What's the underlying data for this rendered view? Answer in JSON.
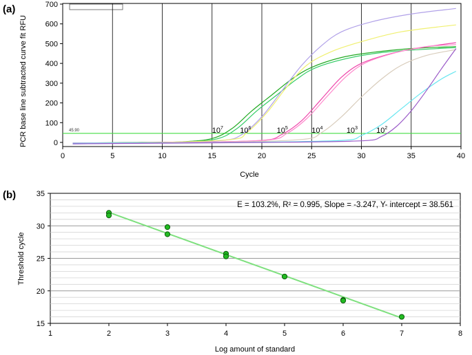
{
  "figure": {
    "panel_a_label": "(a)",
    "panel_b_label": "(b)"
  },
  "chart_data": [
    {
      "type": "line",
      "xlabel": "Cycle",
      "ylabel": "PCR base line subtracted curve fit RFU",
      "xlim": [
        0,
        40
      ],
      "ylim": [
        -10,
        700
      ],
      "xticks": [
        0,
        5,
        10,
        15,
        20,
        25,
        30,
        35,
        40
      ],
      "yticks": [
        0,
        100,
        200,
        300,
        400,
        500,
        600,
        700
      ],
      "grid": "vertical",
      "threshold": {
        "value": 45.9,
        "label": "45.90",
        "color": "#44dd44"
      },
      "dilution_labels": [
        {
          "base": "10",
          "exp": "7",
          "x": 15.0
        },
        {
          "base": "10",
          "exp": "6",
          "x": 17.8
        },
        {
          "base": "10",
          "exp": "5",
          "x": 21.5
        },
        {
          "base": "10",
          "exp": "4",
          "x": 25.0
        },
        {
          "base": "10",
          "exp": "3",
          "x": 28.5
        },
        {
          "base": "10",
          "exp": "2",
          "x": 31.5
        }
      ],
      "series": [
        {
          "color": "#22aa22",
          "points": [
            [
              1,
              -5
            ],
            [
              8,
              0
            ],
            [
              12,
              3
            ],
            [
              15,
              20
            ],
            [
              17,
              70
            ],
            [
              19,
              160
            ],
            [
              21,
              240
            ],
            [
              23,
              320
            ],
            [
              25,
              380
            ],
            [
              28,
              430
            ],
            [
              31,
              455
            ],
            [
              35,
              475
            ],
            [
              39.5,
              485
            ]
          ]
        },
        {
          "color": "#33cc66",
          "points": [
            [
              1,
              -3
            ],
            [
              8,
              0
            ],
            [
              12,
              2
            ],
            [
              15.5,
              18
            ],
            [
              17.5,
              70
            ],
            [
              19.5,
              160
            ],
            [
              21.5,
              240
            ],
            [
              23.5,
              320
            ],
            [
              25.5,
              380
            ],
            [
              29,
              430
            ],
            [
              33,
              460
            ],
            [
              39.5,
              480
            ]
          ]
        },
        {
          "color": "#b0a0e8",
          "points": [
            [
              1,
              -8
            ],
            [
              10,
              0
            ],
            [
              16,
              10
            ],
            [
              18,
              40
            ],
            [
              20,
              130
            ],
            [
              22,
              260
            ],
            [
              24,
              390
            ],
            [
              26,
              490
            ],
            [
              28,
              560
            ],
            [
              31,
              610
            ],
            [
              35,
              650
            ],
            [
              39.5,
              678
            ]
          ]
        },
        {
          "color": "#f0f070",
          "points": [
            [
              1,
              -4
            ],
            [
              10,
              0
            ],
            [
              17,
              15
            ],
            [
              18.5,
              50
            ],
            [
              20.5,
              150
            ],
            [
              22.5,
              280
            ],
            [
              24.5,
              390
            ],
            [
              27,
              460
            ],
            [
              30,
              510
            ],
            [
              34,
              560
            ],
            [
              39.5,
              595
            ]
          ]
        },
        {
          "color": "#ee44aa",
          "points": [
            [
              1,
              -6
            ],
            [
              12,
              0
            ],
            [
              20,
              10
            ],
            [
              22,
              40
            ],
            [
              24,
              110
            ],
            [
              26,
              220
            ],
            [
              28,
              330
            ],
            [
              30,
              400
            ],
            [
              33,
              450
            ],
            [
              36,
              480
            ],
            [
              39.5,
              505
            ]
          ]
        },
        {
          "color": "#ff88cc",
          "points": [
            [
              1,
              -2
            ],
            [
              12,
              0
            ],
            [
              20.5,
              12
            ],
            [
              22.5,
              45
            ],
            [
              24.5,
              120
            ],
            [
              26.5,
              230
            ],
            [
              28.5,
              335
            ],
            [
              30.5,
              405
            ],
            [
              33.5,
              455
            ],
            [
              36.5,
              485
            ],
            [
              39.5,
              495
            ]
          ]
        },
        {
          "color": "#d8ccbb",
          "points": [
            [
              1,
              -5
            ],
            [
              15,
              0
            ],
            [
              24,
              15
            ],
            [
              26,
              50
            ],
            [
              28,
              130
            ],
            [
              30,
              230
            ],
            [
              32,
              320
            ],
            [
              34,
              390
            ],
            [
              36.5,
              440
            ],
            [
              39.5,
              470
            ]
          ]
        },
        {
          "color": "#66e6f0",
          "points": [
            [
              1,
              -4
            ],
            [
              18,
              0
            ],
            [
              28,
              10
            ],
            [
              30,
              35
            ],
            [
              32,
              90
            ],
            [
              34,
              170
            ],
            [
              36,
              250
            ],
            [
              38,
              320
            ],
            [
              39.5,
              360
            ]
          ]
        },
        {
          "color": "#9a5ac8",
          "points": [
            [
              1,
              -7
            ],
            [
              20,
              0
            ],
            [
              30,
              8
            ],
            [
              32,
              30
            ],
            [
              33.5,
              80
            ],
            [
              35,
              160
            ],
            [
              36.5,
              260
            ],
            [
              38,
              370
            ],
            [
              39.5,
              475
            ]
          ]
        }
      ]
    },
    {
      "type": "scatter",
      "xlabel": "Log amount of standard",
      "ylabel": "Threshold cycle",
      "xlim": [
        1,
        8
      ],
      "ylim": [
        15,
        35
      ],
      "xticks": [
        1,
        2,
        3,
        4,
        5,
        6,
        7,
        8
      ],
      "yticks": [
        15,
        20,
        25,
        30,
        35
      ],
      "grid": "horizontal",
      "annotation": "E = 103.2%, R² = 0.995, Slope = -3.247, Y- intercept = 38.561",
      "fit": {
        "slope": -3.247,
        "intercept": 38.561,
        "x_range": [
          2,
          7
        ],
        "color": "#7ee07e"
      },
      "points": [
        {
          "x": 2,
          "y": 32.0
        },
        {
          "x": 2,
          "y": 31.6
        },
        {
          "x": 3,
          "y": 29.8
        },
        {
          "x": 3,
          "y": 28.7
        },
        {
          "x": 4,
          "y": 25.7
        },
        {
          "x": 4,
          "y": 25.3
        },
        {
          "x": 5,
          "y": 22.2
        },
        {
          "x": 6,
          "y": 18.6
        },
        {
          "x": 6,
          "y": 18.5
        },
        {
          "x": 7,
          "y": 16.0
        }
      ]
    }
  ]
}
